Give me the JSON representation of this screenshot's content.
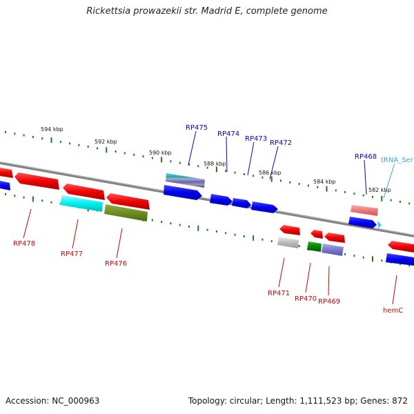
{
  "title": "Rickettsia prowazekii str. Madrid E, complete genome",
  "footer": {
    "accession": "Accession: NC_000963",
    "summary": "Topology: circular; Length: 1,111,523 bp; Genes: 872"
  },
  "colors": {
    "backbone": "#808080",
    "tick": "#1a7a1a",
    "forward_label": "#0000cc",
    "reverse_label": "#cc0000",
    "trna_label": "#33aacc"
  },
  "scale_labels": [
    "594 kbp",
    "592 kbp",
    "590 kbp",
    "588 kbp",
    "586 kbp",
    "584 kbp",
    "582 kbp"
  ],
  "gene_labels": {
    "forward": [
      "RP475",
      "RP474",
      "RP473",
      "RP472",
      "RP468"
    ],
    "trna": "tRNA_Ser",
    "reverse": [
      "RP478",
      "RP477",
      "RP476",
      "RP471",
      "RP470",
      "RP469",
      "hemC"
    ]
  }
}
